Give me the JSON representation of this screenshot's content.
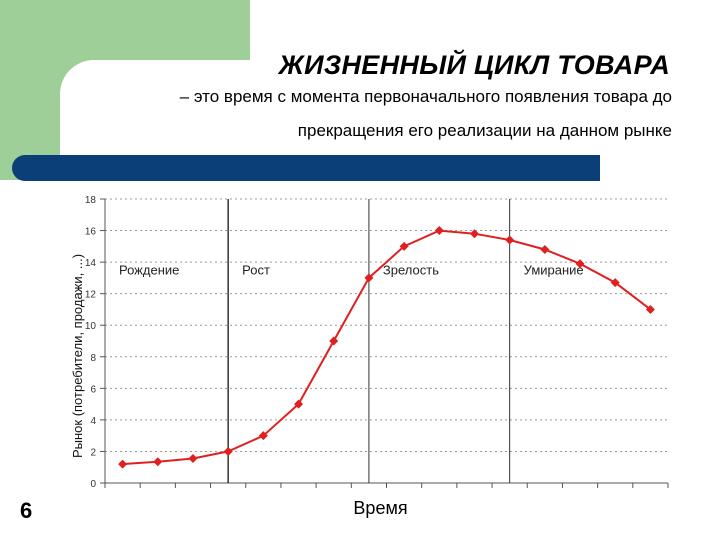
{
  "slide": {
    "title": "ЖИЗНЕННЫЙ ЦИКЛ ТОВАРА",
    "subtitle_line1": "– это время с момента первоначального появления товара до",
    "subtitle_line2": "прекращения его реализации на данном рынке",
    "number": "6"
  },
  "colors": {
    "accent_green": "#9fcf98",
    "accent_blue": "#0b3f78",
    "series_red": "#e02020"
  },
  "chart_data": {
    "type": "line",
    "xlabel": "Время",
    "ylabel": "Рынок (потребители, продажи, ...)",
    "ylim": [
      0,
      18
    ],
    "yticks": [
      0,
      2,
      4,
      6,
      8,
      10,
      12,
      14,
      16,
      18
    ],
    "grid": "horizontal-dotted",
    "x": [
      1,
      2,
      3,
      4,
      5,
      6,
      7,
      8,
      9,
      10,
      11,
      12,
      13,
      14,
      15,
      16
    ],
    "series": [
      {
        "values": [
          1.2,
          1.35,
          1.55,
          2.0,
          3.0,
          5.0,
          9.0,
          13.0,
          15.0,
          16.0,
          15.8,
          15.4,
          14.8,
          13.9,
          12.7,
          11.0
        ]
      }
    ],
    "stages": [
      {
        "label": "Рождение",
        "start": 0.5,
        "end": 4.0
      },
      {
        "label": "Рост",
        "start": 4.0,
        "end": 8.0
      },
      {
        "label": "Зрелость",
        "start": 8.0,
        "end": 12.0
      },
      {
        "label": "Умирание",
        "start": 12.0,
        "end": 16.5
      }
    ]
  }
}
